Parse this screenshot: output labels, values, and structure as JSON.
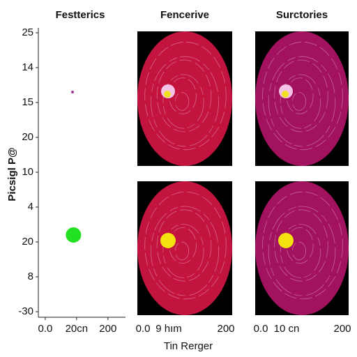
{
  "chart_data": [
    {
      "type": "scatter",
      "title": "Festterics",
      "ylabel": "Picsigl P@",
      "xlim": [
        -0.22,
        2.56
      ],
      "ylim": [
        -0.16,
        8.14
      ],
      "xticks": [
        {
          "value": 0,
          "label": "0.0"
        },
        {
          "value": 1,
          "label": "20cn"
        },
        {
          "value": 2,
          "label": "200"
        }
      ],
      "yticks": [
        {
          "value": 8,
          "label": "25"
        },
        {
          "value": 7,
          "label": "14"
        },
        {
          "value": 6,
          "label": "15"
        },
        {
          "value": 5,
          "label": "20"
        },
        {
          "value": 4,
          "label": "10"
        },
        {
          "value": 3,
          "label": "4"
        },
        {
          "value": 2,
          "label": "20"
        },
        {
          "value": 1,
          "label": "8"
        },
        {
          "value": 0,
          "label": "-30"
        }
      ],
      "series": [
        {
          "color": "#9b3a9b",
          "size": 2,
          "x": [
            0.87
          ],
          "values": [
            6.3
          ]
        },
        {
          "color": "#22e022",
          "size": 11,
          "x": [
            0.9
          ],
          "values": [
            2.2
          ]
        }
      ]
    },
    {
      "type": "image",
      "title": "Fencerive",
      "color": "#c3143f",
      "xtick_labels": [
        "0.0",
        "9 hım",
        "200"
      ]
    },
    {
      "type": "image",
      "title": "Surctories",
      "color": "#a3125e",
      "xtick_labels": [
        "0.0",
        "10 cn",
        "200"
      ]
    }
  ],
  "xlabel": "Tin Rerger"
}
